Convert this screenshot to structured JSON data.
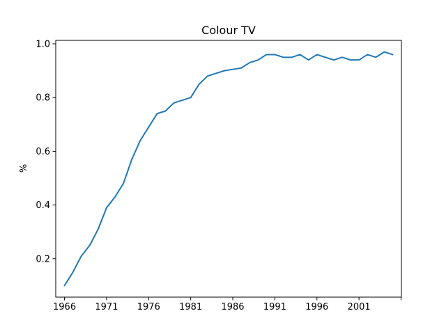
{
  "chart_data": {
    "type": "line",
    "title": "Colour TV",
    "xlabel": "",
    "ylabel": "%",
    "xlim": [
      1964.96,
      2006.04
    ],
    "ylim": [
      0.057,
      1.013
    ],
    "xticks": [
      1966,
      1971,
      1976,
      1981,
      1986,
      1991,
      1996,
      2001,
      2006
    ],
    "xtick_labels": [
      "1966",
      "1971",
      "1976",
      "1981",
      "1986",
      "1991",
      "1996",
      "2001",
      ""
    ],
    "yticks": [
      0.2,
      0.4,
      0.6,
      0.8,
      1.0
    ],
    "ytick_labels": [
      "0.2",
      "0.4",
      "0.6",
      "0.8",
      "1.0"
    ],
    "grid": false,
    "color": "#1f77b4",
    "x": [
      1966,
      1967,
      1968,
      1969,
      1970,
      1971,
      1972,
      1973,
      1974,
      1975,
      1976,
      1977,
      1978,
      1979,
      1980,
      1981,
      1982,
      1983,
      1984,
      1985,
      1986,
      1987,
      1988,
      1989,
      1990,
      1991,
      1992,
      1993,
      1994,
      1995,
      1996,
      1997,
      1998,
      1999,
      2000,
      2001,
      2002,
      2003,
      2004,
      2005
    ],
    "y": [
      0.1,
      0.15,
      0.21,
      0.25,
      0.31,
      0.39,
      0.43,
      0.48,
      0.57,
      0.64,
      0.69,
      0.74,
      0.75,
      0.78,
      0.79,
      0.8,
      0.85,
      0.88,
      0.89,
      0.9,
      0.905,
      0.91,
      0.93,
      0.94,
      0.96,
      0.96,
      0.95,
      0.95,
      0.96,
      0.94,
      0.96,
      0.95,
      0.94,
      0.95,
      0.94,
      0.94,
      0.96,
      0.95,
      0.97,
      0.96
    ]
  }
}
